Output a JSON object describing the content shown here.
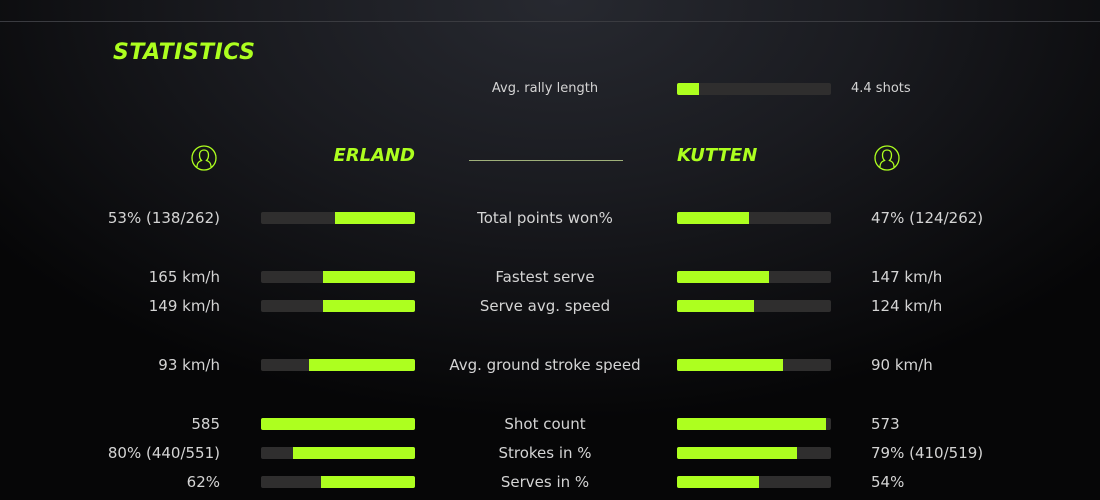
{
  "title": "STATISTICS",
  "accent_color": "#adff1f",
  "rally": {
    "label": "Avg. rally length",
    "value": "4.4 shots",
    "fill": 0.14
  },
  "players": {
    "left": {
      "name": "ERLAND",
      "icon": "user-avatar-icon"
    },
    "right": {
      "name": "KUTTEN",
      "icon": "user-avatar-icon"
    }
  },
  "stats": [
    {
      "label": "Total points won%",
      "left": "53% (138/262)",
      "right": "47% (124/262)",
      "left_fill": 0.52,
      "right_fill": 0.47
    },
    {
      "label": "Fastest serve",
      "left": "165 km/h",
      "right": "147 km/h",
      "left_fill": 0.6,
      "right_fill": 0.6
    },
    {
      "label": "Serve avg. speed",
      "left": "149 km/h",
      "right": "124 km/h",
      "left_fill": 0.6,
      "right_fill": 0.5
    },
    {
      "label": "Avg. ground stroke speed",
      "left": "93 km/h",
      "right": "90 km/h",
      "left_fill": 0.69,
      "right_fill": 0.69
    },
    {
      "label": "Shot count",
      "left": "585",
      "right": "573",
      "left_fill": 1.0,
      "right_fill": 0.97
    },
    {
      "label": "Strokes in %",
      "left": "80% (440/551)",
      "right": "79% (410/519)",
      "left_fill": 0.79,
      "right_fill": 0.78
    },
    {
      "label": "Serves in %",
      "left": "62%",
      "right": "54%",
      "left_fill": 0.61,
      "right_fill": 0.53
    }
  ]
}
